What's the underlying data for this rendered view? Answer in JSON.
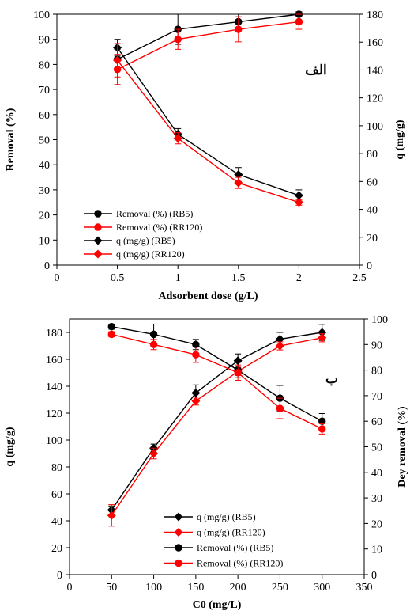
{
  "chart_data": [
    {
      "type": "line",
      "panel_label": "الف",
      "xlabel": "Adsorbent dose (g/L)",
      "ylabel": "Removal (%)",
      "y2label": "q (mg/g)",
      "xlim": [
        0,
        2.5
      ],
      "ylim": [
        0,
        100
      ],
      "y2lim": [
        0,
        180
      ],
      "xticks": [
        "0",
        "0.5",
        "1",
        "1.5",
        "2",
        "2.5"
      ],
      "yticks": [
        "0",
        "10",
        "20",
        "30",
        "40",
        "50",
        "60",
        "70",
        "80",
        "90",
        "100"
      ],
      "y2ticks": [
        "0",
        "20",
        "40",
        "60",
        "80",
        "100",
        "120",
        "140",
        "160",
        "180"
      ],
      "legend_position": "bottom-left",
      "grid": false,
      "x": [
        0.5,
        1,
        1.5,
        2
      ],
      "series": [
        {
          "name": "Removal (%) (RB5)",
          "axis": "left",
          "color": "#000000",
          "marker": "circle",
          "values": [
            82,
            94,
            97,
            100
          ],
          "errors": [
            4,
            6,
            3,
            1
          ]
        },
        {
          "name": "Removal (%) (RR120)",
          "axis": "left",
          "color": "#ff0000",
          "marker": "circle",
          "values": [
            78,
            90,
            94,
            97
          ],
          "errors": [
            6,
            4,
            5,
            3
          ]
        },
        {
          "name": "q (mg/g) (RB5)",
          "axis": "right",
          "color": "#000000",
          "marker": "diamond",
          "values": [
            156,
            94,
            65,
            50
          ],
          "errors": [
            6,
            4,
            5,
            4
          ]
        },
        {
          "name": "q (mg/g) (RR120)",
          "axis": "right",
          "color": "#ff0000",
          "marker": "diamond",
          "values": [
            147,
            91,
            59,
            45
          ],
          "errors": [
            12,
            4,
            4,
            2
          ]
        }
      ]
    },
    {
      "type": "line",
      "panel_label": "ب",
      "xlabel": "C0 (mg/L)",
      "ylabel": "q (mg/g)",
      "y2label": "Dey removal (%)",
      "xlim": [
        0,
        350
      ],
      "ylim": [
        0,
        190
      ],
      "y2lim": [
        0,
        100
      ],
      "xticks": [
        "0",
        "50",
        "100",
        "150",
        "200",
        "250",
        "300",
        "350"
      ],
      "yticks": [
        "0",
        "20",
        "40",
        "60",
        "80",
        "100",
        "120",
        "140",
        "160",
        "180"
      ],
      "y2ticks": [
        "0",
        "10",
        "20",
        "30",
        "40",
        "50",
        "60",
        "70",
        "80",
        "90",
        "100"
      ],
      "legend_position": "bottom-right",
      "grid": false,
      "x": [
        50,
        100,
        150,
        200,
        250,
        300
      ],
      "series": [
        {
          "name": "q (mg/g) (RB5)",
          "axis": "left",
          "color": "#000000",
          "marker": "diamond",
          "values": [
            48,
            94,
            135,
            159,
            175,
            180
          ],
          "errors": [
            3,
            3,
            6,
            5,
            5,
            6
          ]
        },
        {
          "name": "q (mg/g) (RR120)",
          "axis": "left",
          "color": "#ff0000",
          "marker": "diamond",
          "values": [
            44,
            90,
            129,
            151,
            170,
            176
          ],
          "errors": [
            8,
            4,
            3,
            3,
            3,
            3
          ]
        },
        {
          "name": "Removal (%) (RB5)",
          "axis": "right",
          "color": "#000000",
          "marker": "circle",
          "values": [
            97,
            94,
            90,
            80,
            69,
            60
          ],
          "errors": [
            1,
            4,
            2,
            3,
            5,
            3
          ]
        },
        {
          "name": "Removal (%) (RR120)",
          "axis": "right",
          "color": "#ff0000",
          "marker": "circle",
          "values": [
            94,
            90,
            86,
            79,
            65,
            57
          ],
          "errors": [
            1,
            2,
            3,
            3,
            4,
            2
          ]
        }
      ]
    }
  ]
}
